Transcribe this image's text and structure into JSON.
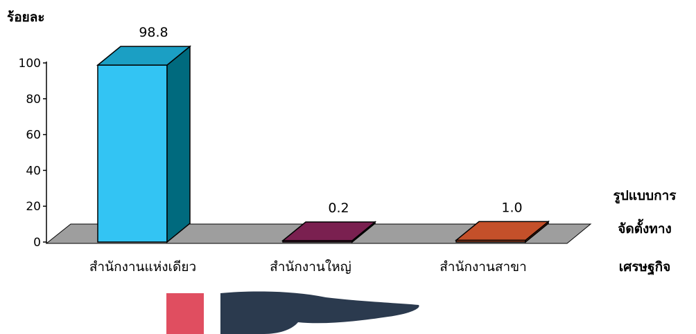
{
  "chart_data": {
    "type": "bar",
    "ylabel": "ร้อยละ",
    "xlabel": "รูปแบบการจัดตั้งทางเศรษฐกิจ",
    "xlabel_lines": [
      "รูปแบบการ",
      "จัดตั้งทาง",
      "เศรษฐกิจ"
    ],
    "categories": [
      "สำนักงานแห่งเดียว",
      "สำนักงานใหญ่",
      "สำนักงานสาขา"
    ],
    "values": [
      98.8,
      0.2,
      1.0
    ],
    "value_labels": [
      "98.8",
      "0.2",
      "1.0"
    ],
    "ylim": [
      0,
      100
    ],
    "yticks": [
      "0",
      "20",
      "40",
      "60",
      "80",
      "100"
    ],
    "grid": false,
    "bar_colors": [
      {
        "front": "#33c4f3",
        "top": "#1b9fc4",
        "side": "#006a7e"
      },
      {
        "front": "#7a2050",
        "top": "#7a2050",
        "side": "#5a1239"
      },
      {
        "front": "#c4502a",
        "top": "#c4502a",
        "side": "#8a3315"
      }
    ],
    "floor_color": "#9e9e9e"
  },
  "decor": {
    "logo_square_color": "#e04e60",
    "hand_color": "#2b3a4e"
  }
}
